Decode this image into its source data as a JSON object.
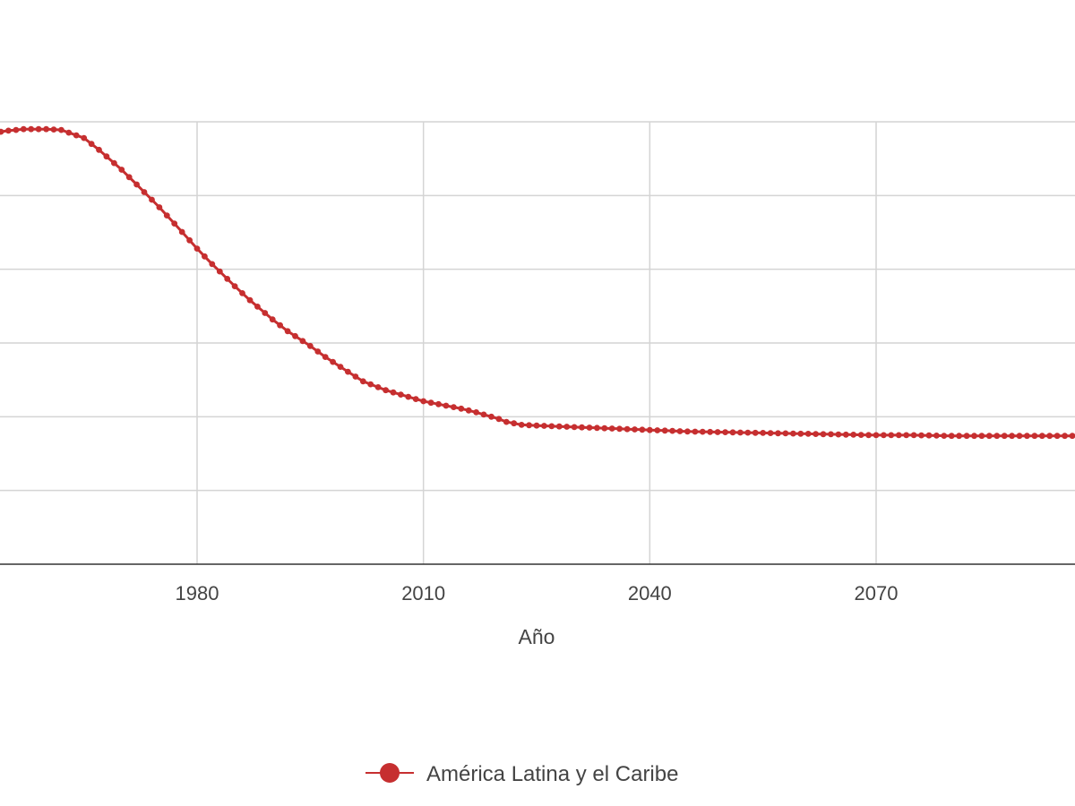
{
  "chart_data": {
    "type": "line",
    "title": "",
    "xlabel": "Año",
    "ylabel": "",
    "xlim": [
      1953,
      2100
    ],
    "ylim": [
      0,
      6
    ],
    "x_ticks": [
      1980,
      2010,
      2040,
      2070
    ],
    "y_ticks": [
      0,
      1,
      2,
      3,
      4,
      5,
      6
    ],
    "grid": true,
    "legend_position": "bottom-center",
    "series": [
      {
        "name": "América Latina y el Caribe",
        "color": "#c62f30",
        "x": [
          1953,
          1955,
          1957,
          1958,
          1960,
          1962,
          1965,
          1967,
          1970,
          1972,
          1975,
          1977,
          1980,
          1982,
          1985,
          1987,
          1990,
          1992,
          1995,
          1997,
          2000,
          2002,
          2005,
          2007,
          2010,
          2012,
          2015,
          2017,
          2020,
          2021,
          2023,
          2025,
          2030,
          2035,
          2040,
          2045,
          2050,
          2055,
          2060,
          2065,
          2070,
          2075,
          2080,
          2085,
          2090,
          2095,
          2100
        ],
        "y": [
          5.85,
          5.88,
          5.9,
          5.9,
          5.9,
          5.89,
          5.78,
          5.62,
          5.35,
          5.15,
          4.84,
          4.62,
          4.28,
          4.07,
          3.77,
          3.58,
          3.32,
          3.16,
          2.96,
          2.81,
          2.61,
          2.48,
          2.36,
          2.3,
          2.21,
          2.17,
          2.11,
          2.06,
          1.97,
          1.93,
          1.89,
          1.88,
          1.86,
          1.84,
          1.82,
          1.8,
          1.79,
          1.78,
          1.77,
          1.76,
          1.75,
          1.75,
          1.74,
          1.74,
          1.74,
          1.74,
          1.74
        ]
      }
    ]
  }
}
